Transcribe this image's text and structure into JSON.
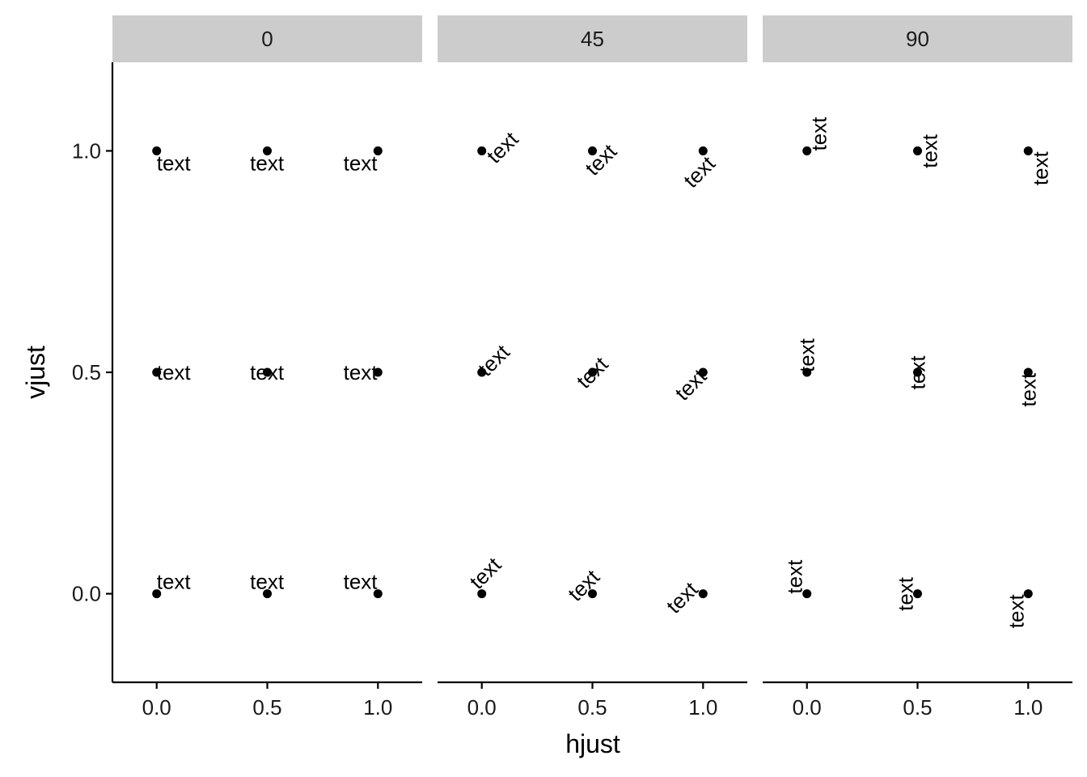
{
  "chart_data": {
    "type": "scatter",
    "xlabel": "hjust",
    "ylabel": "vjust",
    "xlim": [
      -0.2,
      1.2
    ],
    "ylim": [
      -0.2,
      1.2
    ],
    "x_ticks": [
      0,
      0.5,
      1
    ],
    "x_tick_labels": [
      "0.0",
      "0.5",
      "1.0"
    ],
    "y_ticks": [
      0,
      0.5,
      1
    ],
    "y_tick_labels": [
      "0.0",
      "0.5",
      "1.0"
    ],
    "grid": false,
    "facet_variable": "angle",
    "facets": [
      {
        "label": "0",
        "angle": 0
      },
      {
        "label": "45",
        "angle": 45
      },
      {
        "label": "90",
        "angle": 90
      }
    ],
    "hjust_values": [
      0,
      0.5,
      1
    ],
    "vjust_values": [
      0,
      0.5,
      1
    ],
    "text_label": "text",
    "colors": {
      "strip": "#cccccc",
      "points": "#000000",
      "text": "#000000"
    }
  }
}
